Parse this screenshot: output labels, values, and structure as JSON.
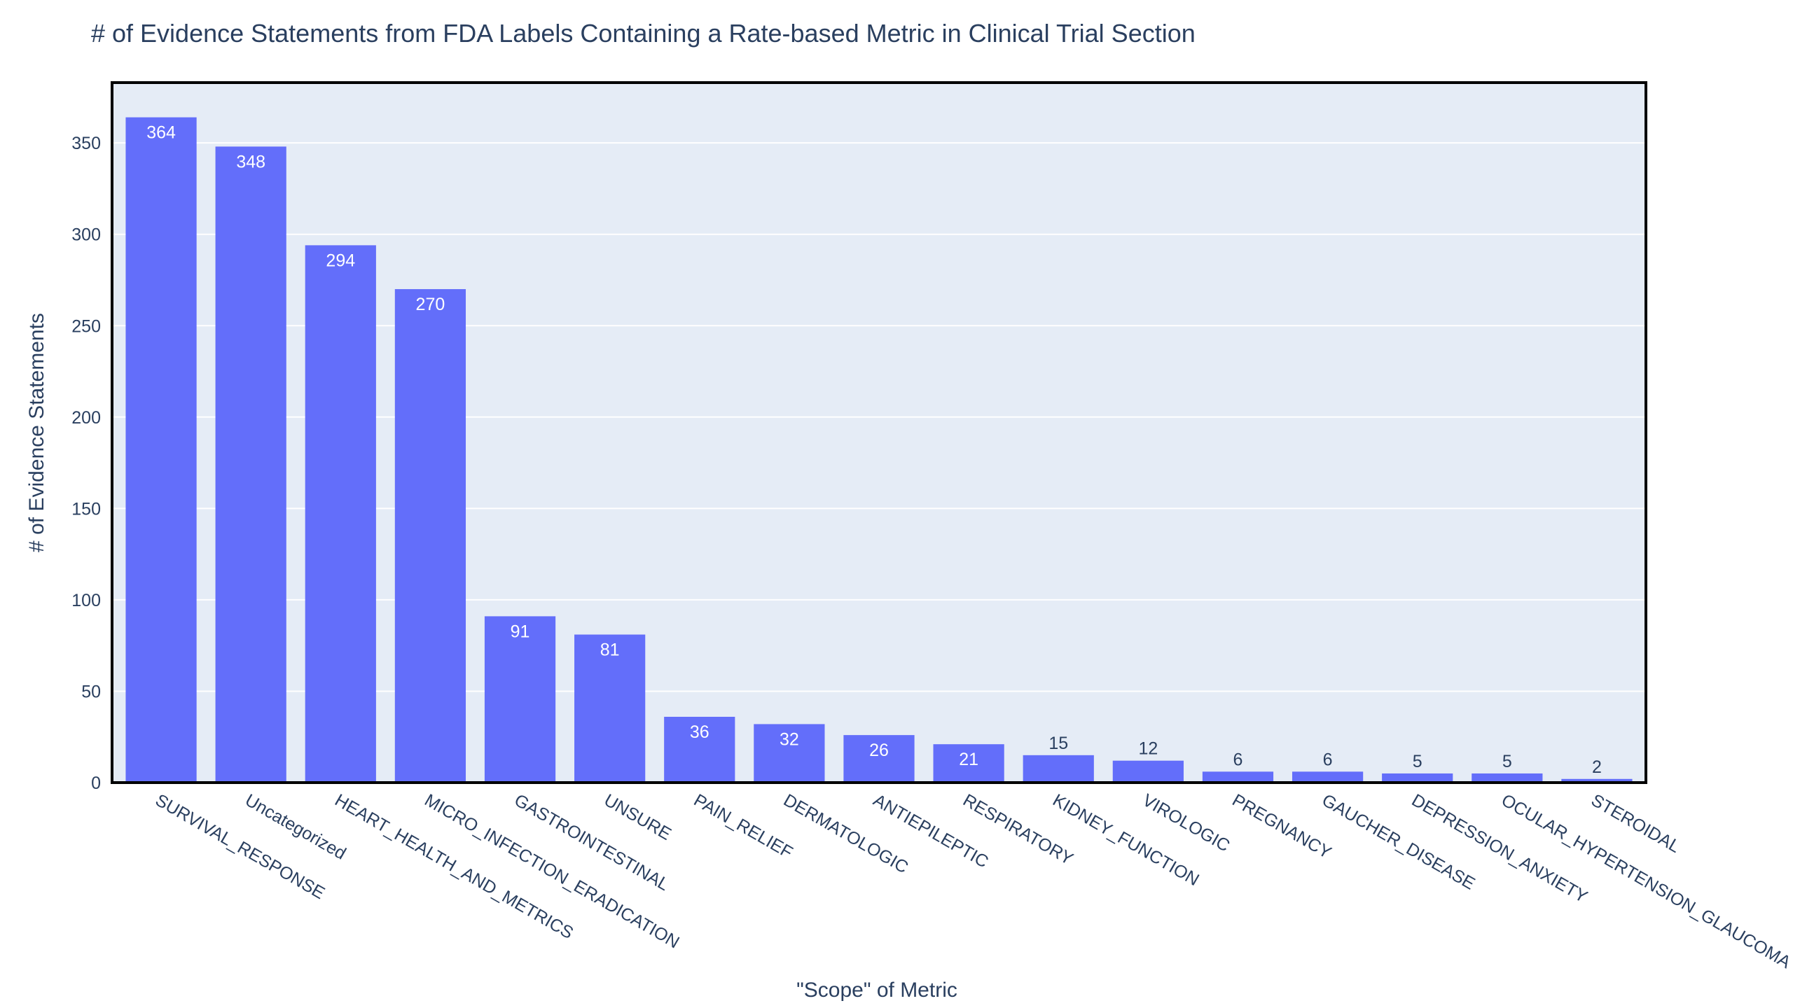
{
  "chart_data": {
    "type": "bar",
    "title": "# of Evidence Statements from FDA Labels Containing a Rate-based Metric in Clinical Trial Section",
    "xlabel": "\"Scope\" of Metric",
    "ylabel": "# of Evidence Statements",
    "categories": [
      "SURVIVAL_RESPONSE",
      "Uncategorized",
      "HEART_HEALTH_AND_METRICS",
      "MICRO_INFECTION_ERADICATION",
      "GASTROINTESTINAL",
      "UNSURE",
      "PAIN_RELIEF",
      "DERMATOLOGIC",
      "ANTIEPILEPTIC",
      "RESPIRATORY",
      "KIDNEY_FUNCTION",
      "VIROLOGIC",
      "PREGNANCY",
      "GAUCHER_DISEASE",
      "DEPRESSION_ANXIETY",
      "OCULAR_HYPERTENSION_GLAUCOMA",
      "STEROIDAL"
    ],
    "values": [
      364,
      348,
      294,
      270,
      91,
      81,
      36,
      32,
      26,
      21,
      15,
      12,
      6,
      6,
      5,
      5,
      2
    ],
    "ylim": [
      0,
      383
    ],
    "yticks": [
      0,
      50,
      100,
      150,
      200,
      250,
      300,
      350
    ],
    "grid": true,
    "colors": {
      "bar": "#636efa",
      "plot_bg": "#e5ecf6",
      "text": "#2a3f5f",
      "frame": "#000000"
    }
  }
}
